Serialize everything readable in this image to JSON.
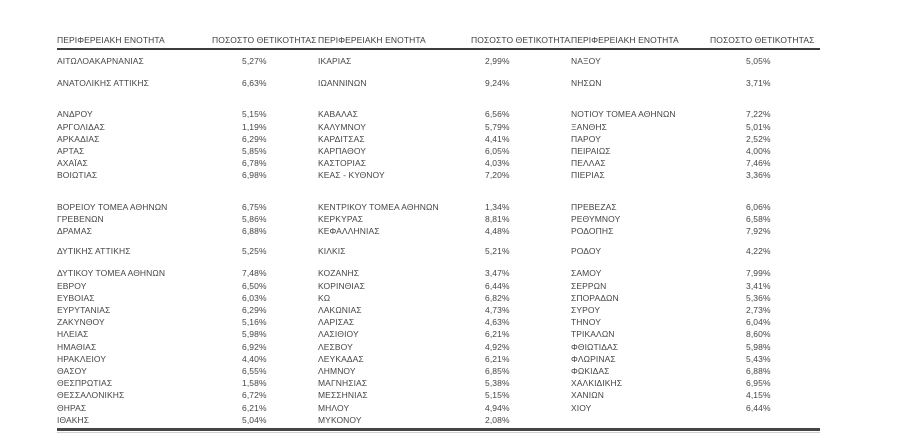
{
  "page": {
    "description": "Table of Greek regional units with positivity percentages, three column-pairs wide"
  },
  "colors": {
    "background": "#ffffff",
    "text": "#454545",
    "rule_dark": "#3c3c3c",
    "rule_light": "#cfcfcf"
  },
  "table": {
    "header": [
      "ΠΕΡΙΦΕΡΕΙΑΚΗ ΕΝΟΤΗΤΑ",
      "ΠΟΣΟΣΤΟ ΘΕΤΙΚΟΤΗΤΑΣ",
      "ΠΕΡΙΦΕΡΕΙΑΚΗ ΕΝΟΤΗΤΑ",
      "ΠΟΣΟΣΤΟ ΘΕΤΙΚΟΤΗΤΑΣ",
      "ΠΕΡΙΦΕΡΕΙΑΚΗ ΕΝΟΤΗΤΑ",
      "ΠΟΣΟΣΤΟ ΘΕΤΙΚΟΤΗΤΑΣ"
    ],
    "rows": [
      {
        "cells": [
          "ΑΙΤΩΛΟΑΚΑΡΝΑΝΙΑΣ",
          "5,27%",
          "ΙΚΑΡΙΑΣ",
          "2,99%",
          "ΝΑΞΟΥ",
          "5,05%"
        ]
      },
      {
        "spacer": 10
      },
      {
        "cells": [
          "ΑΝΑΤΟΛΙΚΗΣ ΑΤΤΙΚΗΣ",
          "6,63%",
          "ΙΩΑΝΝΙΝΩΝ",
          "9,24%",
          "ΝΗΣΩΝ",
          "3,71%"
        ]
      },
      {
        "spacer": 19
      },
      {
        "cells": [
          "ΑΝΔΡΟΥ",
          "5,15%",
          "ΚΑΒΑΛΑΣ",
          "6,56%",
          "ΝΟΤΙΟΥ ΤΟΜΕΑ ΑΘΗΝΩΝ",
          "7,22%"
        ]
      },
      {
        "cells": [
          "ΑΡΓΟΛΙΔΑΣ",
          "1,19%",
          "ΚΑΛΥΜΝΟΥ",
          "5,79%",
          "ΞΑΝΘΗΣ",
          "5,01%"
        ]
      },
      {
        "cells": [
          "ΑΡΚΑΔΙΑΣ",
          "6,29%",
          "ΚΑΡΔΙΤΣΑΣ",
          "4,41%",
          "ΠΑΡΟΥ",
          "2,52%"
        ]
      },
      {
        "cells": [
          "ΑΡΤΑΣ",
          "5,85%",
          "ΚΑΡΠΑΘΟΥ",
          "6,05%",
          "ΠΕΙΡΑΙΩΣ",
          "4,00%"
        ]
      },
      {
        "cells": [
          "ΑΧΑΪΑΣ",
          "6,78%",
          "ΚΑΣΤΟΡΙΑΣ",
          "4,03%",
          "ΠΕΛΛΑΣ",
          "7,46%"
        ]
      },
      {
        "cells": [
          "ΒΟΙΩΤΙΑΣ",
          "6,98%",
          "ΚΕΑΣ - ΚΥΘΝΟΥ",
          "7,20%",
          "ΠΙΕΡΙΑΣ",
          "3,36%"
        ]
      },
      {
        "spacer": 19
      },
      {
        "cells": [
          "ΒΟΡΕΙΟΥ ΤΟΜΕΑ ΑΘΗΝΩΝ",
          "6,75%",
          "ΚΕΝΤΡΙΚΟΥ ΤΟΜΕΑ ΑΘΗΝΩΝ",
          "1,34%",
          "ΠΡΕΒΕΖΑΣ",
          "6,06%"
        ]
      },
      {
        "cells": [
          "ΓΡΕΒΕΝΩΝ",
          "5,86%",
          "ΚΕΡΚΥΡΑΣ",
          "8,81%",
          "ΡΕΘΥΜΝΟΥ",
          "6,58%"
        ]
      },
      {
        "cells": [
          "ΔΡΑΜΑΣ",
          "6,88%",
          "ΚΕΦΑΛΛΗΝΙΑΣ",
          "4,48%",
          "ΡΟΔΟΠΗΣ",
          "7,92%"
        ]
      },
      {
        "spacer": 8
      },
      {
        "cells": [
          "ΔΥΤΙΚΗΣ ΑΤΤΙΚΗΣ",
          "5,25%",
          "ΚΙΛΚΙΣ",
          "5,21%",
          "ΡΟΔΟΥ",
          "4,22%"
        ]
      },
      {
        "spacer": 10
      },
      {
        "cells": [
          "ΔΥΤΙΚΟΥ ΤΟΜΕΑ ΑΘΗΝΩΝ",
          "7,48%",
          "ΚΟΖΑΝΗΣ",
          "3,47%",
          "ΣΑΜΟΥ",
          "7,99%"
        ]
      },
      {
        "cells": [
          "ΕΒΡΟΥ",
          "6,50%",
          "ΚΟΡΙΝΘΙΑΣ",
          "6,44%",
          "ΣΕΡΡΩΝ",
          "3,41%"
        ]
      },
      {
        "cells": [
          "ΕΥΒΟΙΑΣ",
          "6,03%",
          "ΚΩ",
          "6,82%",
          "ΣΠΟΡΑΔΩΝ",
          "5,36%"
        ]
      },
      {
        "cells": [
          "ΕΥΡΥΤΑΝΙΑΣ",
          "6,29%",
          "ΛΑΚΩΝΙΑΣ",
          "4,73%",
          "ΣΥΡΟΥ",
          "2,73%"
        ]
      },
      {
        "cells": [
          "ΖΑΚΥΝΘΟΥ",
          "5,16%",
          "ΛΑΡΙΣΑΣ",
          "4,63%",
          "ΤΗΝΟΥ",
          "6,04%"
        ]
      },
      {
        "cells": [
          "ΗΛΕΙΑΣ",
          "5,98%",
          "ΛΑΣΙΘΙΟΥ",
          "6,21%",
          "ΤΡΙΚΑΛΩΝ",
          "8,60%"
        ]
      },
      {
        "cells": [
          "ΗΜΑΘΙΑΣ",
          "6,92%",
          "ΛΕΣΒΟΥ",
          "4,92%",
          "ΦΘΙΩΤΙΔΑΣ",
          "5,98%"
        ]
      },
      {
        "cells": [
          "ΗΡΑΚΛΕΙΟΥ",
          "4,40%",
          "ΛΕΥΚΑΔΑΣ",
          "6,21%",
          "ΦΛΩΡΙΝΑΣ",
          "5,43%"
        ]
      },
      {
        "cells": [
          "ΘΑΣΟΥ",
          "6,55%",
          "ΛΗΜΝΟΥ",
          "6,85%",
          "ΦΩΚΙΔΑΣ",
          "6,88%"
        ]
      },
      {
        "cells": [
          "ΘΕΣΠΡΩΤΙΑΣ",
          "1,58%",
          "ΜΑΓΝΗΣΙΑΣ",
          "5,38%",
          "ΧΑΛΚΙΔΙΚΗΣ",
          "6,95%"
        ]
      },
      {
        "cells": [
          "ΘΕΣΣΑΛΟΝΙΚΗΣ",
          "6,72%",
          "ΜΕΣΣΗΝΙΑΣ",
          "5,15%",
          "ΧΑΝΙΩΝ",
          "4,15%"
        ]
      },
      {
        "cells": [
          "ΘΗΡΑΣ",
          "6,21%",
          "ΜΗΛΟΥ",
          "4,94%",
          "ΧΙΟΥ",
          "6,44%"
        ]
      },
      {
        "cells": [
          "ΙΘΑΚΗΣ",
          "5,04%",
          "ΜΥΚΟΝΟΥ",
          "2,08%",
          "",
          ""
        ]
      }
    ]
  }
}
